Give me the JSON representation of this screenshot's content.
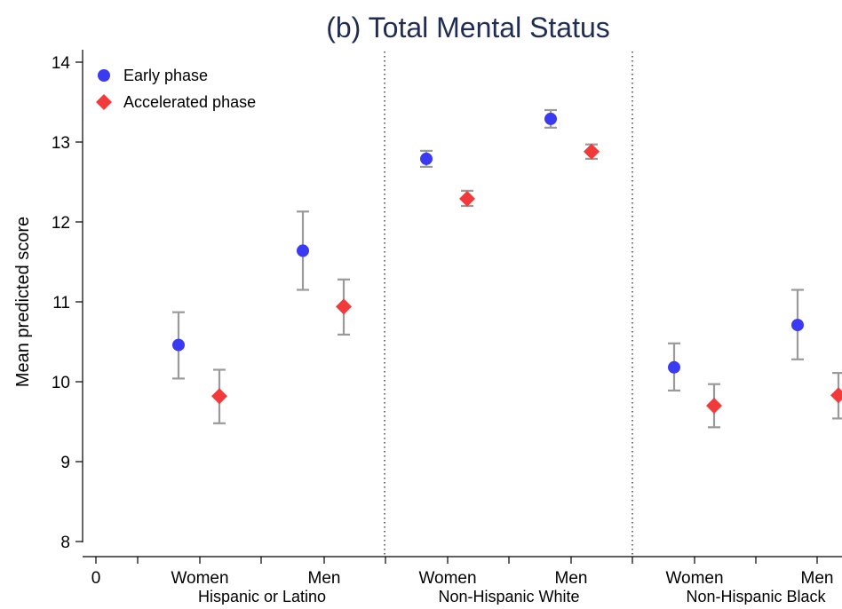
{
  "chart_data": {
    "type": "scatter",
    "title": "(b) Total Mental Status",
    "ylabel": "Mean predicted score",
    "xlabel": "",
    "ylim": [
      8,
      14
    ],
    "yticks": [
      8,
      9,
      10,
      11,
      12,
      13,
      14
    ],
    "x_tick_labels": [
      "0",
      "Women",
      "Men",
      "Women",
      "Men",
      "Women",
      "Men"
    ],
    "groups": [
      "Hispanic or Latino",
      "Non-Hispanic White",
      "Non-Hispanic Black"
    ],
    "legend_position": "top-left",
    "series": [
      {
        "name": "Early phase",
        "marker": "circle",
        "color": "#3a3af2",
        "points": [
          {
            "group": "Hispanic or Latino",
            "sex": "Women",
            "mean": 10.46,
            "lower": 10.04,
            "upper": 10.87
          },
          {
            "group": "Hispanic or Latino",
            "sex": "Men",
            "mean": 11.64,
            "lower": 11.15,
            "upper": 12.13
          },
          {
            "group": "Non-Hispanic White",
            "sex": "Women",
            "mean": 12.79,
            "lower": 12.69,
            "upper": 12.89
          },
          {
            "group": "Non-Hispanic White",
            "sex": "Men",
            "mean": 13.29,
            "lower": 13.18,
            "upper": 13.4
          },
          {
            "group": "Non-Hispanic Black",
            "sex": "Women",
            "mean": 10.18,
            "lower": 9.89,
            "upper": 10.48
          },
          {
            "group": "Non-Hispanic Black",
            "sex": "Men",
            "mean": 10.71,
            "lower": 10.28,
            "upper": 11.15
          }
        ]
      },
      {
        "name": "Accelerated phase",
        "marker": "diamond",
        "color": "#f23a3a",
        "points": [
          {
            "group": "Hispanic or Latino",
            "sex": "Women",
            "mean": 9.82,
            "lower": 9.48,
            "upper": 10.15
          },
          {
            "group": "Hispanic or Latino",
            "sex": "Men",
            "mean": 10.94,
            "lower": 10.59,
            "upper": 11.28
          },
          {
            "group": "Non-Hispanic White",
            "sex": "Women",
            "mean": 12.29,
            "lower": 12.2,
            "upper": 12.39
          },
          {
            "group": "Non-Hispanic White",
            "sex": "Men",
            "mean": 12.88,
            "lower": 12.79,
            "upper": 12.97
          },
          {
            "group": "Non-Hispanic Black",
            "sex": "Women",
            "mean": 9.7,
            "lower": 9.43,
            "upper": 9.97
          },
          {
            "group": "Non-Hispanic Black",
            "sex": "Men",
            "mean": 9.83,
            "lower": 9.54,
            "upper": 10.11
          }
        ]
      }
    ],
    "error_bar_color": "#9a9a9a",
    "separator_style": "dotted",
    "grid": false
  }
}
